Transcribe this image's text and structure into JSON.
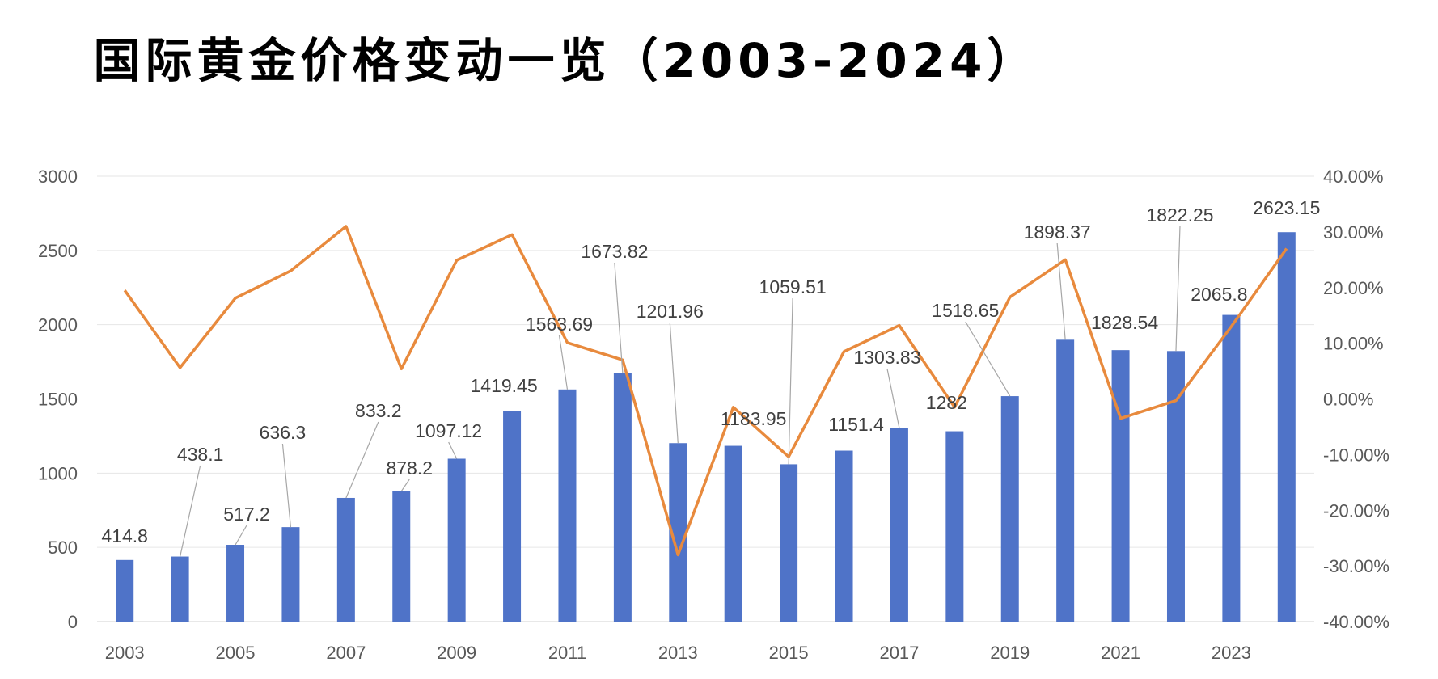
{
  "chart_data": {
    "type": "bar",
    "title": "国际黄金价格变动一览（2003-2024）",
    "years": [
      2003,
      2004,
      2005,
      2006,
      2007,
      2008,
      2009,
      2010,
      2011,
      2012,
      2013,
      2014,
      2015,
      2016,
      2017,
      2018,
      2019,
      2020,
      2021,
      2022,
      2023,
      2024
    ],
    "x_tick_labels": [
      "2003",
      "2005",
      "2007",
      "2009",
      "2011",
      "2013",
      "2015",
      "2017",
      "2019",
      "2021",
      "2023"
    ],
    "series": [
      {
        "type": "bar",
        "values": [
          414.8,
          438.1,
          517.2,
          636.3,
          833.2,
          878.2,
          1097.12,
          1419.45,
          1563.69,
          1673.82,
          1201.96,
          1183.95,
          1059.51,
          1151.4,
          1303.83,
          1282,
          1518.65,
          1898.37,
          1828.54,
          1822.25,
          2065.8,
          2623.15
        ],
        "labels": [
          "414.8",
          "438.1",
          "517.2",
          "636.3",
          "833.2",
          "878.2",
          "1097.12",
          "1419.45",
          "1563.69",
          "1673.82",
          "1201.96",
          "1183.95",
          "1059.51",
          "1151.4",
          "1303.83",
          "1282",
          "1518.65",
          "1898.37",
          "1828.54",
          "1822.25",
          "2065.8",
          "2623.15"
        ],
        "color": "#4f73c8",
        "axis": "left"
      },
      {
        "type": "line",
        "values": [
          0.195,
          0.056,
          0.181,
          0.23,
          0.31,
          0.054,
          0.249,
          0.295,
          0.101,
          0.07,
          -0.28,
          -0.015,
          -0.104,
          0.085,
          0.132,
          -0.015,
          0.183,
          0.25,
          -0.035,
          -0.003,
          0.13,
          0.27
        ],
        "color": "#e88a3d",
        "axis": "right"
      }
    ],
    "y_left": {
      "ylim": [
        0,
        3000
      ],
      "ticks": [
        "0",
        "500",
        "1000",
        "1500",
        "2000",
        "2500",
        "3000"
      ]
    },
    "y_right": {
      "ylim": [
        -0.4,
        0.4
      ],
      "ticks": [
        "-40.00%",
        "-30.00%",
        "-20.00%",
        "-10.00%",
        "0.00%",
        "10.00%",
        "20.00%",
        "30.00%",
        "40.00%"
      ]
    },
    "grid": true
  }
}
